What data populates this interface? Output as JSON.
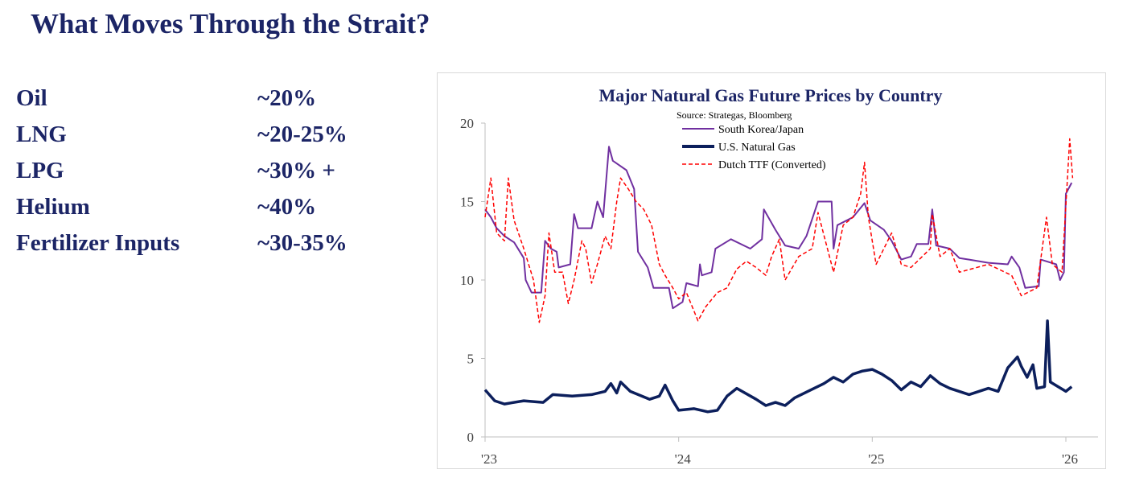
{
  "slide": {
    "title": "What Moves Through the Strait?",
    "items": [
      {
        "label": "Oil",
        "value": "~20%"
      },
      {
        "label": "LNG",
        "value": "~20-25%"
      },
      {
        "label": "LPG",
        "value": "~30% +"
      },
      {
        "label": "Helium",
        "value": "~40%"
      },
      {
        "label": "Fertilizer Inputs",
        "value": "~30-35%"
      }
    ]
  },
  "chart_data": {
    "type": "line",
    "title": "Major Natural Gas Future Prices by Country",
    "subtitle": "Source: Strategas, Bloomberg",
    "xlabel": "",
    "ylabel": "",
    "xlim": [
      2023,
      2026.25
    ],
    "ylim": [
      0,
      20
    ],
    "yticks": [
      "0",
      "5",
      "10",
      "15",
      "20"
    ],
    "xticks": [
      {
        "value": 2023,
        "label": "'23"
      },
      {
        "value": 2024,
        "label": "'24"
      },
      {
        "value": 2025,
        "label": "'25"
      },
      {
        "value": 2026,
        "label": "'26"
      }
    ],
    "legend_position": "top-center",
    "grid": false,
    "series": [
      {
        "name": "South Korea/Japan",
        "color": "#7030a0",
        "style": "solid",
        "points": [
          [
            2023.0,
            14.5
          ],
          [
            2023.03,
            14.0
          ],
          [
            2023.06,
            13.3
          ],
          [
            2023.1,
            12.8
          ],
          [
            2023.15,
            12.4
          ],
          [
            2023.2,
            11.4
          ],
          [
            2023.21,
            10.0
          ],
          [
            2023.24,
            9.2
          ],
          [
            2023.29,
            9.2
          ],
          [
            2023.31,
            12.5
          ],
          [
            2023.34,
            12.0
          ],
          [
            2023.37,
            11.8
          ],
          [
            2023.38,
            10.8
          ],
          [
            2023.44,
            11.0
          ],
          [
            2023.46,
            14.2
          ],
          [
            2023.48,
            13.3
          ],
          [
            2023.55,
            13.3
          ],
          [
            2023.58,
            15.0
          ],
          [
            2023.61,
            14.0
          ],
          [
            2023.64,
            18.5
          ],
          [
            2023.66,
            17.6
          ],
          [
            2023.73,
            17.0
          ],
          [
            2023.77,
            15.8
          ],
          [
            2023.79,
            11.8
          ],
          [
            2023.84,
            10.8
          ],
          [
            2023.87,
            9.5
          ],
          [
            2023.95,
            9.5
          ],
          [
            2023.97,
            8.2
          ],
          [
            2024.02,
            8.6
          ],
          [
            2024.04,
            9.8
          ],
          [
            2024.1,
            9.6
          ],
          [
            2024.11,
            11.0
          ],
          [
            2024.12,
            10.3
          ],
          [
            2024.17,
            10.5
          ],
          [
            2024.19,
            12.0
          ],
          [
            2024.27,
            12.6
          ],
          [
            2024.37,
            12.0
          ],
          [
            2024.43,
            12.6
          ],
          [
            2024.44,
            14.5
          ],
          [
            2024.5,
            13.2
          ],
          [
            2024.55,
            12.2
          ],
          [
            2024.62,
            12.0
          ],
          [
            2024.66,
            12.8
          ],
          [
            2024.72,
            15.0
          ],
          [
            2024.79,
            15.0
          ],
          [
            2024.8,
            12.0
          ],
          [
            2024.82,
            13.5
          ],
          [
            2024.9,
            14.0
          ],
          [
            2024.96,
            14.9
          ],
          [
            2024.99,
            13.8
          ],
          [
            2025.06,
            13.2
          ],
          [
            2025.1,
            12.5
          ],
          [
            2025.15,
            11.3
          ],
          [
            2025.2,
            11.5
          ],
          [
            2025.23,
            12.3
          ],
          [
            2025.29,
            12.3
          ],
          [
            2025.31,
            14.5
          ],
          [
            2025.33,
            12.2
          ],
          [
            2025.4,
            12.0
          ],
          [
            2025.45,
            11.4
          ],
          [
            2025.5,
            11.3
          ],
          [
            2025.6,
            11.1
          ],
          [
            2025.7,
            11.0
          ],
          [
            2025.72,
            11.5
          ],
          [
            2025.76,
            10.8
          ],
          [
            2025.79,
            9.5
          ],
          [
            2025.86,
            9.6
          ],
          [
            2025.87,
            11.3
          ],
          [
            2025.95,
            11.0
          ],
          [
            2025.97,
            10.0
          ],
          [
            2025.99,
            10.5
          ],
          [
            2026.0,
            15.5
          ],
          [
            2026.03,
            16.2
          ]
        ]
      },
      {
        "name": "U.S. Natural Gas",
        "color": "#0c1f5c",
        "style": "solid-thick",
        "points": [
          [
            2023.0,
            3.0
          ],
          [
            2023.05,
            2.3
          ],
          [
            2023.1,
            2.1
          ],
          [
            2023.2,
            2.3
          ],
          [
            2023.3,
            2.2
          ],
          [
            2023.35,
            2.7
          ],
          [
            2023.45,
            2.6
          ],
          [
            2023.55,
            2.7
          ],
          [
            2023.62,
            2.9
          ],
          [
            2023.65,
            3.4
          ],
          [
            2023.68,
            2.8
          ],
          [
            2023.7,
            3.5
          ],
          [
            2023.75,
            2.9
          ],
          [
            2023.85,
            2.4
          ],
          [
            2023.9,
            2.6
          ],
          [
            2023.93,
            3.3
          ],
          [
            2023.97,
            2.3
          ],
          [
            2024.0,
            1.7
          ],
          [
            2024.08,
            1.8
          ],
          [
            2024.15,
            1.6
          ],
          [
            2024.2,
            1.7
          ],
          [
            2024.25,
            2.6
          ],
          [
            2024.3,
            3.1
          ],
          [
            2024.4,
            2.4
          ],
          [
            2024.45,
            2.0
          ],
          [
            2024.5,
            2.2
          ],
          [
            2024.55,
            2.0
          ],
          [
            2024.6,
            2.5
          ],
          [
            2024.7,
            3.1
          ],
          [
            2024.75,
            3.4
          ],
          [
            2024.8,
            3.8
          ],
          [
            2024.85,
            3.5
          ],
          [
            2024.9,
            4.0
          ],
          [
            2024.95,
            4.2
          ],
          [
            2025.0,
            4.3
          ],
          [
            2025.05,
            4.0
          ],
          [
            2025.1,
            3.6
          ],
          [
            2025.15,
            3.0
          ],
          [
            2025.2,
            3.5
          ],
          [
            2025.25,
            3.2
          ],
          [
            2025.3,
            3.9
          ],
          [
            2025.35,
            3.4
          ],
          [
            2025.4,
            3.1
          ],
          [
            2025.5,
            2.7
          ],
          [
            2025.6,
            3.1
          ],
          [
            2025.65,
            2.9
          ],
          [
            2025.7,
            4.4
          ],
          [
            2025.75,
            5.1
          ],
          [
            2025.77,
            4.5
          ],
          [
            2025.8,
            3.8
          ],
          [
            2025.83,
            4.6
          ],
          [
            2025.85,
            3.1
          ],
          [
            2025.89,
            3.2
          ],
          [
            2025.905,
            7.4
          ],
          [
            2025.92,
            3.5
          ],
          [
            2025.96,
            3.2
          ],
          [
            2026.0,
            2.9
          ],
          [
            2026.03,
            3.2
          ]
        ]
      },
      {
        "name": "Dutch TTF (Converted)",
        "color": "#ff0000",
        "style": "dashed",
        "points": [
          [
            2023.0,
            14.0
          ],
          [
            2023.03,
            16.5
          ],
          [
            2023.06,
            13.0
          ],
          [
            2023.1,
            12.5
          ],
          [
            2023.12,
            16.5
          ],
          [
            2023.15,
            13.8
          ],
          [
            2023.2,
            12.0
          ],
          [
            2023.25,
            10.0
          ],
          [
            2023.28,
            7.3
          ],
          [
            2023.31,
            9.0
          ],
          [
            2023.33,
            13.0
          ],
          [
            2023.36,
            10.5
          ],
          [
            2023.4,
            10.5
          ],
          [
            2023.43,
            8.5
          ],
          [
            2023.46,
            10.0
          ],
          [
            2023.5,
            12.5
          ],
          [
            2023.52,
            12.0
          ],
          [
            2023.55,
            9.8
          ],
          [
            2023.58,
            11.0
          ],
          [
            2023.62,
            12.8
          ],
          [
            2023.65,
            12.0
          ],
          [
            2023.68,
            15.0
          ],
          [
            2023.7,
            16.5
          ],
          [
            2023.74,
            15.8
          ],
          [
            2023.78,
            15.0
          ],
          [
            2023.82,
            14.5
          ],
          [
            2023.86,
            13.5
          ],
          [
            2023.9,
            11.0
          ],
          [
            2023.93,
            10.3
          ],
          [
            2023.97,
            9.5
          ],
          [
            2024.0,
            8.8
          ],
          [
            2024.04,
            9.2
          ],
          [
            2024.1,
            7.4
          ],
          [
            2024.14,
            8.3
          ],
          [
            2024.2,
            9.2
          ],
          [
            2024.25,
            9.5
          ],
          [
            2024.3,
            10.7
          ],
          [
            2024.35,
            11.2
          ],
          [
            2024.4,
            10.8
          ],
          [
            2024.45,
            10.3
          ],
          [
            2024.48,
            11.5
          ],
          [
            2024.52,
            12.6
          ],
          [
            2024.55,
            10.0
          ],
          [
            2024.62,
            11.5
          ],
          [
            2024.69,
            12.0
          ],
          [
            2024.72,
            14.3
          ],
          [
            2024.8,
            10.5
          ],
          [
            2024.85,
            13.5
          ],
          [
            2024.9,
            14.0
          ],
          [
            2024.94,
            15.5
          ],
          [
            2024.96,
            17.5
          ],
          [
            2024.98,
            14.0
          ],
          [
            2025.02,
            11.0
          ],
          [
            2025.1,
            13.0
          ],
          [
            2025.15,
            11.0
          ],
          [
            2025.2,
            10.8
          ],
          [
            2025.3,
            12.0
          ],
          [
            2025.31,
            14.2
          ],
          [
            2025.35,
            11.5
          ],
          [
            2025.4,
            12.0
          ],
          [
            2025.45,
            10.5
          ],
          [
            2025.6,
            11.0
          ],
          [
            2025.72,
            10.3
          ],
          [
            2025.77,
            9.0
          ],
          [
            2025.85,
            9.5
          ],
          [
            2025.9,
            14.0
          ],
          [
            2025.93,
            11.0
          ],
          [
            2025.98,
            10.5
          ],
          [
            2026.02,
            19.0
          ],
          [
            2026.035,
            16.5
          ]
        ]
      }
    ]
  }
}
